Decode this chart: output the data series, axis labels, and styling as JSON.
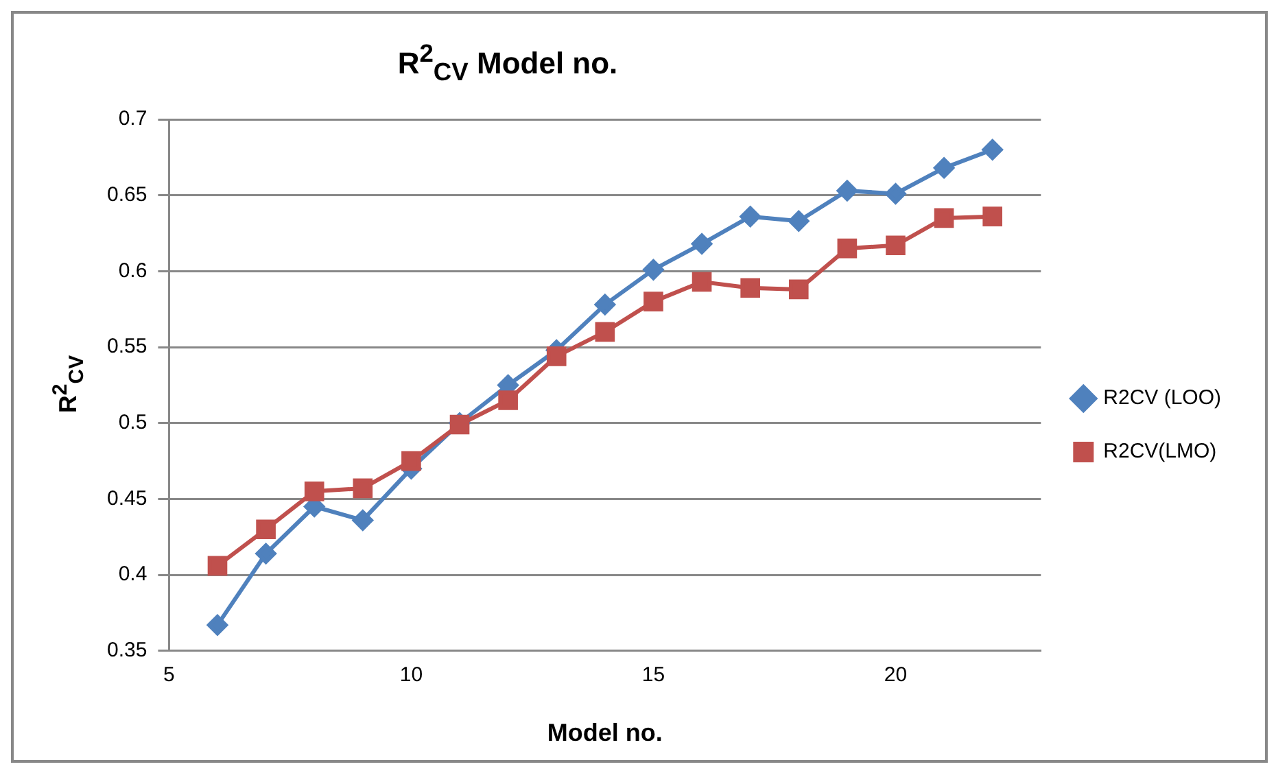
{
  "chart_data": {
    "type": "line",
    "title": "R$^{2}$$_{CV}$ Model no.",
    "xlabel": "Model no.",
    "ylabel": "R$^{2}$$_{CV}$",
    "x": [
      6,
      7,
      8,
      9,
      10,
      11,
      12,
      13,
      14,
      15,
      16,
      17,
      18,
      19,
      20,
      21,
      22
    ],
    "series": [
      {
        "name": "R2CV (LOO)",
        "color": "#4f81bd",
        "marker": "diamond",
        "values": [
          0.367,
          0.414,
          0.445,
          0.436,
          0.47,
          0.5,
          0.525,
          0.548,
          0.578,
          0.601,
          0.618,
          0.636,
          0.633,
          0.653,
          0.651,
          0.668,
          0.68
        ]
      },
      {
        "name": "R2CV(LMO)",
        "color": "#c0504d",
        "marker": "square",
        "values": [
          0.406,
          0.43,
          0.455,
          0.457,
          0.475,
          0.499,
          0.515,
          0.544,
          0.56,
          0.58,
          0.593,
          0.589,
          0.588,
          0.615,
          0.617,
          0.635,
          0.636
        ]
      }
    ],
    "xlim": [
      5,
      23
    ],
    "xticks": [
      5,
      10,
      15,
      20
    ],
    "ylim": [
      0.35,
      0.7
    ],
    "yticks": [
      0.35,
      0.4,
      0.45,
      0.5,
      0.55,
      0.6,
      0.65,
      0.7
    ],
    "grid": "y",
    "legend": "right"
  }
}
